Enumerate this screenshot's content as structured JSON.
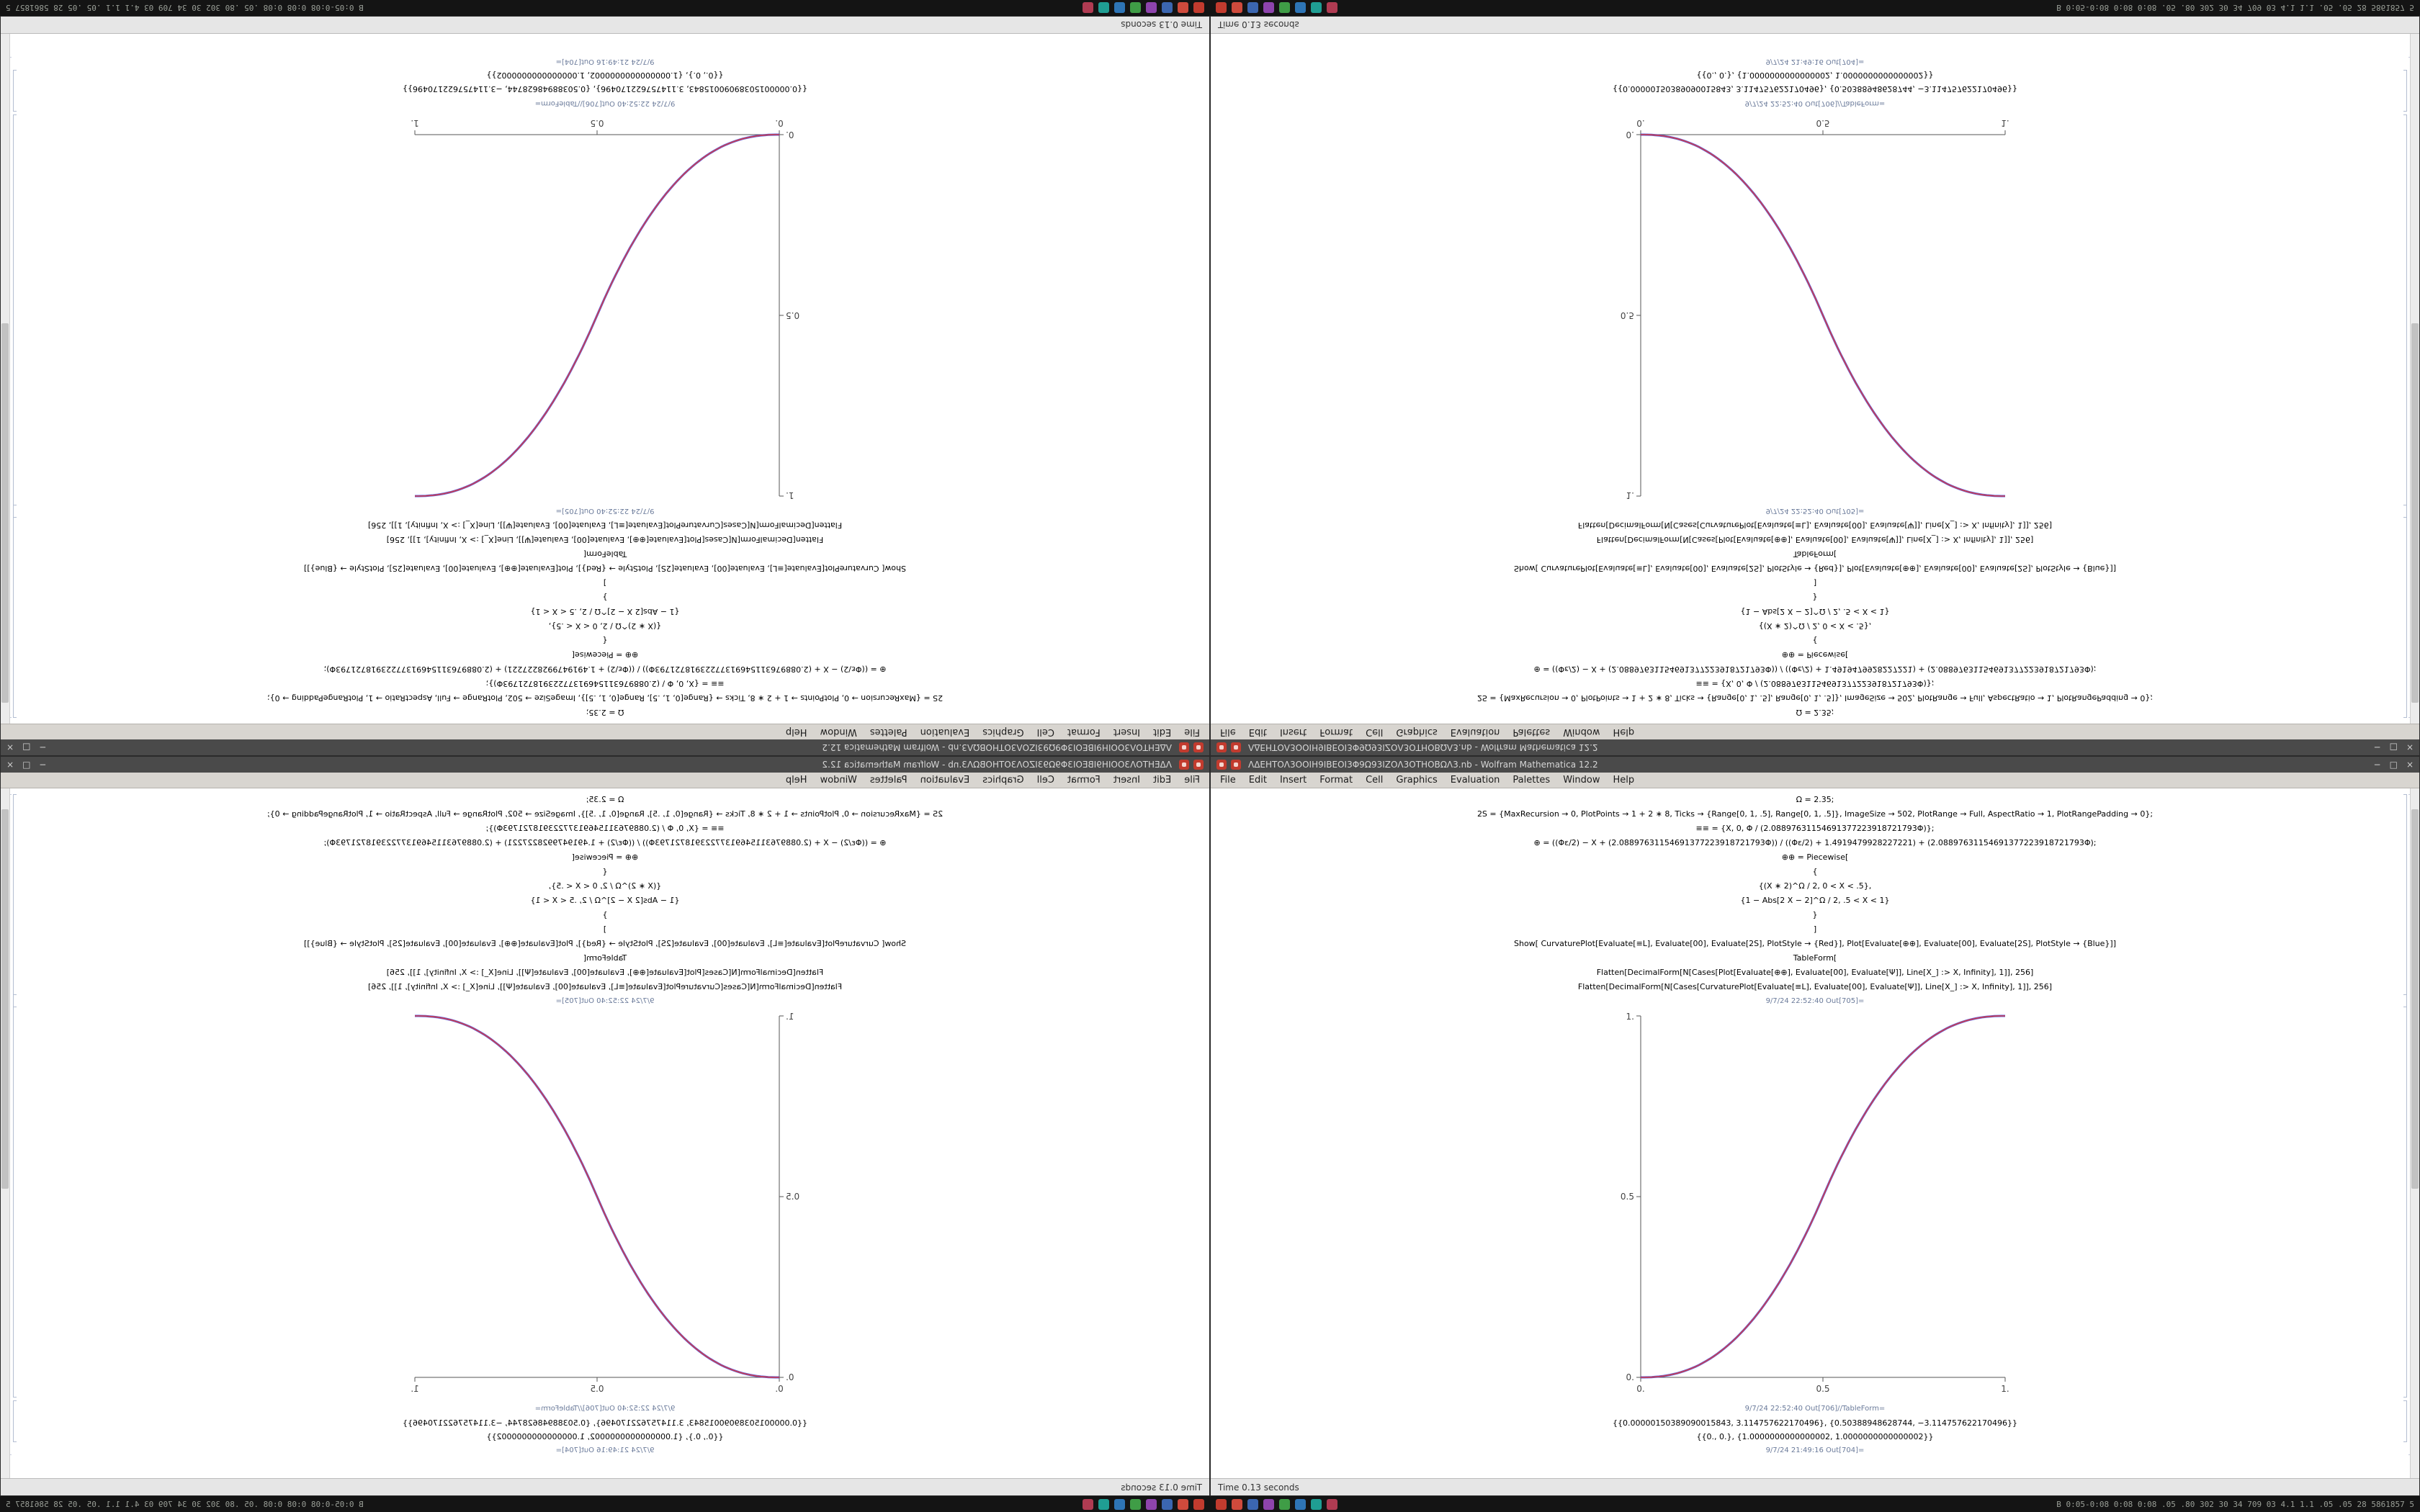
{
  "desktop": {
    "background_color": "#1a1a1a",
    "taskbar": {
      "tray_icon_colors": [
        "#c23b2e",
        "#cf4a3c",
        "#3b66b0",
        "#8e44ad",
        "#3f9d46",
        "#2e75b6",
        "#1f9e93",
        "#b03b52"
      ],
      "right_text": "B 0:05-0:08 0:08 0:08 .05 .80 302 30 34 709 03 4.1 1.1 .05 .05 28 5861857 5"
    }
  },
  "window": {
    "title": "ΛΔΕΗΤΟΛ3ΟΟΙΗ9ΙΒΕΟΙ3Φ9Ω93ΙΖΟΛ3ΟΤΗΟΒΩΛ3.nb - Wolfram Mathematica 12.2",
    "controls": {
      "minimize": "−",
      "maximize": "□",
      "close": "×"
    },
    "menu": [
      "File",
      "Edit",
      "Insert",
      "Format",
      "Cell",
      "Graphics",
      "Evaluation",
      "Palettes",
      "Window",
      "Help"
    ],
    "status_left": "Time 0.13 seconds"
  },
  "notebook": {
    "lines": [
      "Ω = 2.35;",
      "2S = {MaxRecursion → 0, PlotPoints → 1 + 2 ∗ 8, Ticks → {Range[0, 1, .5], Range[0, 1, .5]}, ImageSize → 502, PlotRange → Full, AspectRatio → 1, PlotRangePadding → 0};",
      "≡≡ = {X, 0, Φ / (2.08897631154691377223918721793Φ)};",
      "⊕ = ((Φε/2) − X + (2.08897631154691377223918721793Φ)) / ((Φε/2) + 1.4919479928227221) + (2.08897631154691377223918721793Φ);",
      "⊕⊕ = Piecewise[",
      "{",
      "{(X ∗ 2)^Ω / 2, 0 < X < .5},",
      "{1 − Abs[2 X − 2]^Ω / 2, .5 < X < 1}",
      "}",
      "]",
      "Show[ CurvaturePlot[Evaluate[≡L], Evaluate[00], Evaluate[2S], PlotStyle → {Red}], Plot[Evaluate[⊕⊕], Evaluate[00], Evaluate[2S], PlotStyle → {Blue}]]",
      "TableForm[",
      "Flatten[DecimalForm[N[Cases[Plot[Evaluate[⊕⊕], Evaluate[00], Evaluate[Ψ]], Line[X_] :> X, Infinity], 1]], 256]",
      "Flatten[DecimalForm[N[Cases[CurvaturePlot[Evaluate[≡L], Evaluate[00], Evaluate[Ψ]], Line[X_] :> X, Infinity], 1]], 256]",
      "9/7/24 22:52:40 Out[705]=",
      "9/7/24 22:52:40 Out[706]//TableForm=",
      "{{0.00000150389090015843, 3.114757622170496}, {0.50388948628744, −3.114757622170496}}",
      "{{0., 0.}, {1.0000000000000002, 1.0000000000000002}}",
      "9/7/24 21:49:16 Out[704]="
    ]
  },
  "plot": {
    "omega": 2.35,
    "image_size": 502,
    "xticks": [
      "0.",
      "0.5",
      "1."
    ],
    "yticks": [
      "0.",
      "0.5",
      "1."
    ],
    "red": "#d83a3a",
    "blue": "#4040d8"
  },
  "chart_data": {
    "type": "line",
    "title": "",
    "xlabel": "",
    "ylabel": "",
    "xlim": [
      0,
      1
    ],
    "ylim": [
      0,
      1
    ],
    "xticks": [
      0,
      0.5,
      1
    ],
    "yticks": [
      0,
      0.5,
      1
    ],
    "grid": false,
    "legend": false,
    "function": "piecewise sigmoid: (2x)^2.35/2 for 0<x<0.5 ; 1-(2-2x)^2.35/2 for 0.5<x<1",
    "x": [
      0,
      0.1,
      0.2,
      0.3,
      0.4,
      0.5,
      0.6,
      0.7,
      0.8,
      0.9,
      1
    ],
    "series": [
      {
        "name": "CurvaturePlot (Red)",
        "color": "#d83a3a",
        "y": [
          0,
          0.0114,
          0.058,
          0.1505,
          0.2958,
          0.5,
          0.7042,
          0.8495,
          0.942,
          0.9886,
          1
        ]
      },
      {
        "name": "Plot (Blue)",
        "color": "#4040d8",
        "y": [
          0,
          0.0114,
          0.058,
          0.1505,
          0.2958,
          0.5,
          0.7042,
          0.8495,
          0.942,
          0.9886,
          1
        ]
      }
    ],
    "table_rows": [
      "{{0.00000150389090015843, 3.114757622170496}, {0.50388948628744, −3.114757622170496}}",
      "{{0., 0.}, {1.0000000000000002, 1.0000000000000002}}"
    ]
  }
}
